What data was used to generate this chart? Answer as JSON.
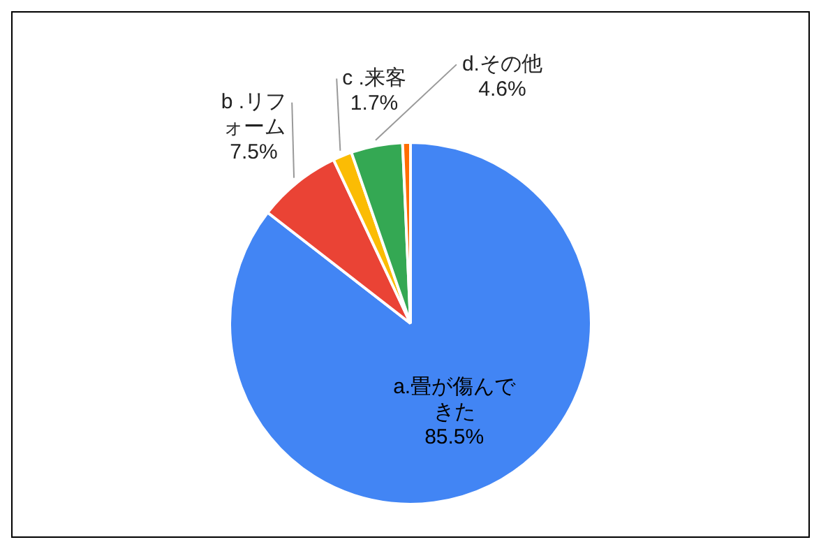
{
  "chart_data": {
    "type": "pie",
    "categories": [
      "a.畳が傷んできた",
      "b .リフォーム",
      "c .来客",
      "d.その他",
      null
    ],
    "values": [
      85.5,
      7.5,
      1.7,
      4.6,
      0.7
    ],
    "colors": [
      "#4285f4",
      "#ea4335",
      "#fbbc04",
      "#34a853",
      "#ff6d01"
    ],
    "value_labels": [
      "85.5%",
      "7.5%",
      "1.7%",
      "4.6%",
      null
    ],
    "legend": false
  }
}
